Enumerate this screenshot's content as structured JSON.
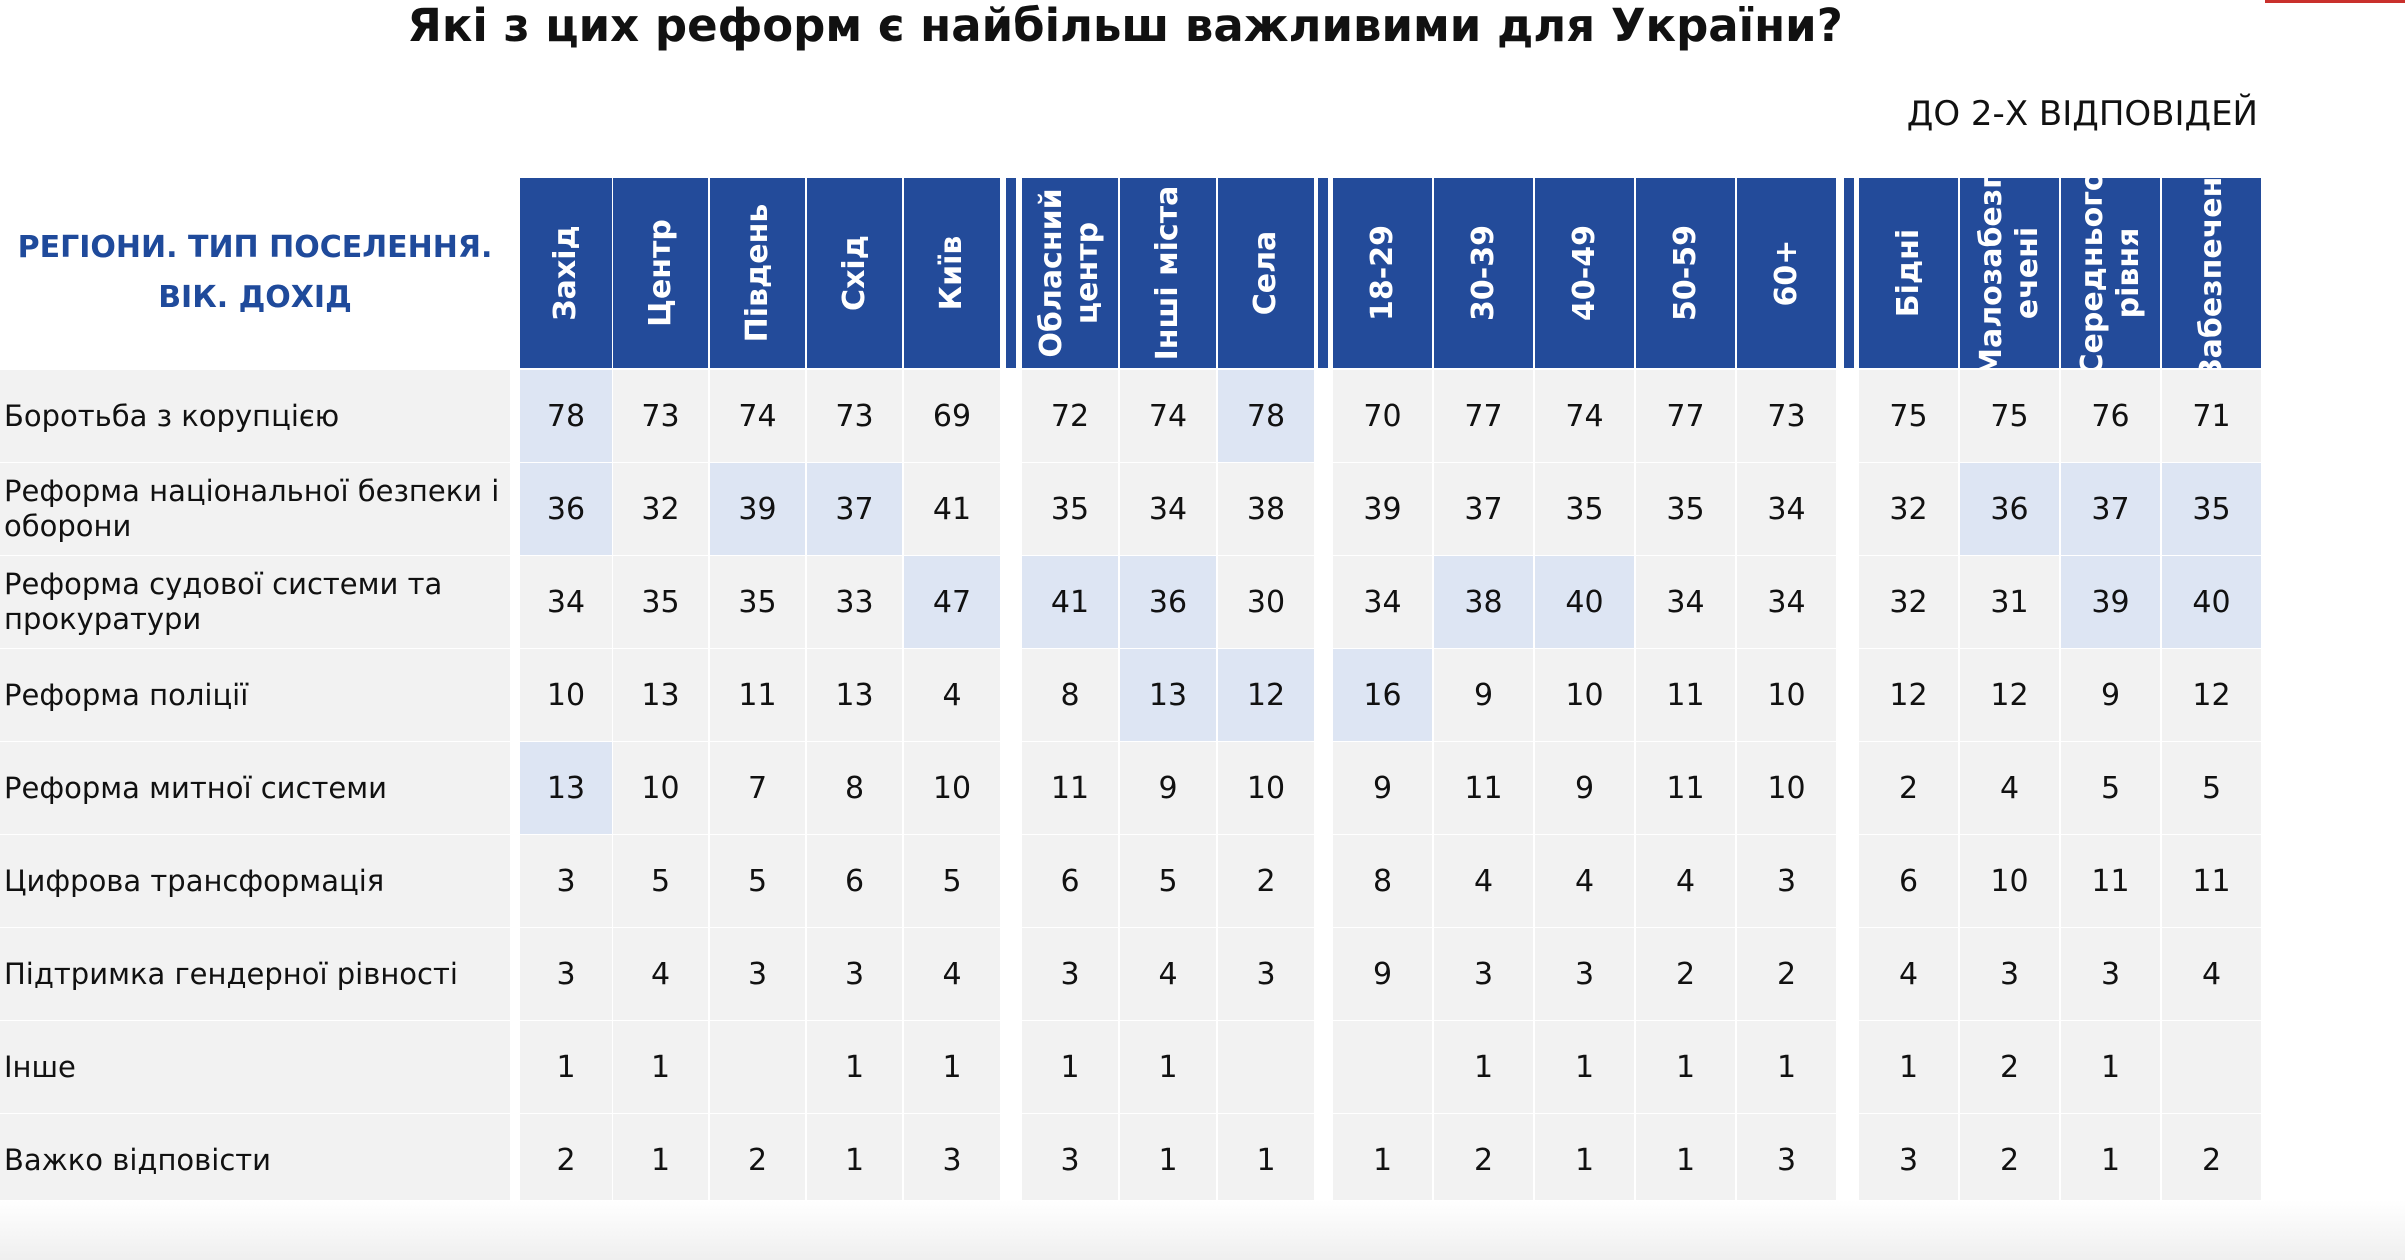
{
  "title": "Які з цих реформ є найбільш важливими для України?",
  "subtitle": "ДО 2-Х ВІДПОВІДЕЙ",
  "colors": {
    "header_bg": "#234b9a",
    "header_label": "#1f4a9b",
    "cell_bg": "#f2f2f2",
    "highlight_bg": "#dde5f3"
  },
  "chart_data": {
    "type": "table",
    "corner_label": "РЕГІОНИ. ТИП ПОСЕЛЕННЯ. ВІК. ДОХІД",
    "groups": [
      {
        "columns": [
          "Захід",
          "Центр",
          "Південь",
          "Схід",
          "Київ"
        ]
      },
      {
        "columns": [
          "Обласний центр",
          "Інші міста",
          "Села"
        ]
      },
      {
        "columns": [
          "18-29",
          "30-39",
          "40-49",
          "50-59",
          "60+"
        ]
      },
      {
        "columns": [
          "Бідні",
          "Малозабезпечені",
          "Середнього рівня",
          "Забезпечені"
        ]
      }
    ],
    "column_header_lines": [
      [
        "Захід"
      ],
      [
        "Центр"
      ],
      [
        "Південь"
      ],
      [
        "Схід"
      ],
      [
        "Київ"
      ],
      [
        "Обласний",
        "центр"
      ],
      [
        "Інші міста"
      ],
      [
        "Села"
      ],
      [
        "18-29"
      ],
      [
        "30-39"
      ],
      [
        "40-49"
      ],
      [
        "50-59"
      ],
      [
        "60+"
      ],
      [
        "Бідні"
      ],
      [
        "Малозабезп",
        "ечені"
      ],
      [
        "Середнього",
        "рівня"
      ],
      [
        "Забезпечені"
      ]
    ],
    "rows": [
      {
        "label": "Боротьба з корупцією",
        "values": [
          "78",
          "73",
          "74",
          "73",
          "69",
          "72",
          "74",
          "78",
          "70",
          "77",
          "74",
          "77",
          "73",
          "75",
          "75",
          "76",
          "71"
        ],
        "highlight": [
          0,
          7
        ]
      },
      {
        "label": "Реформа національної безпеки і оборони",
        "values": [
          "36",
          "32",
          "39",
          "37",
          "41",
          "35",
          "34",
          "38",
          "39",
          "37",
          "35",
          "35",
          "34",
          "32",
          "36",
          "37",
          "35"
        ],
        "highlight": [
          0,
          2,
          3,
          14,
          15,
          16
        ]
      },
      {
        "label": "Реформа судової системи та прокуратури",
        "values": [
          "34",
          "35",
          "35",
          "33",
          "47",
          "41",
          "36",
          "30",
          "34",
          "38",
          "40",
          "34",
          "34",
          "32",
          "31",
          "39",
          "40"
        ],
        "highlight": [
          4,
          5,
          6,
          9,
          10,
          15,
          16
        ]
      },
      {
        "label": "Реформа поліції",
        "values": [
          "10",
          "13",
          "11",
          "13",
          "4",
          "8",
          "13",
          "12",
          "16",
          "9",
          "10",
          "11",
          "10",
          "12",
          "12",
          "9",
          "12"
        ],
        "highlight": [
          6,
          7,
          8
        ]
      },
      {
        "label": "Реформа митної системи",
        "values": [
          "13",
          "10",
          "7",
          "8",
          "10",
          "11",
          "9",
          "10",
          "9",
          "11",
          "9",
          "11",
          "10",
          "2",
          "4",
          "5",
          "5"
        ],
        "highlight": [
          0
        ]
      },
      {
        "label": "Цифрова трансформація",
        "values": [
          "3",
          "5",
          "5",
          "6",
          "5",
          "6",
          "5",
          "2",
          "8",
          "4",
          "4",
          "4",
          "3",
          "6",
          "10",
          "11",
          "11"
        ],
        "highlight": []
      },
      {
        "label": "Підтримка гендерної рівності",
        "values": [
          "3",
          "4",
          "3",
          "3",
          "4",
          "3",
          "4",
          "3",
          "9",
          "3",
          "3",
          "2",
          "2",
          "4",
          "3",
          "3",
          "4"
        ],
        "highlight": []
      },
      {
        "label": "Інше",
        "values": [
          "1",
          "1",
          "",
          "1",
          "1",
          "1",
          "1",
          "",
          "",
          "1",
          "1",
          "1",
          "1",
          "1",
          "2",
          "1",
          ""
        ],
        "highlight": []
      },
      {
        "label": "Важко відповісти",
        "values": [
          "2",
          "1",
          "2",
          "1",
          "3",
          "3",
          "1",
          "1",
          "1",
          "2",
          "1",
          "1",
          "3",
          "3",
          "2",
          "1",
          "2"
        ],
        "highlight": []
      }
    ]
  }
}
